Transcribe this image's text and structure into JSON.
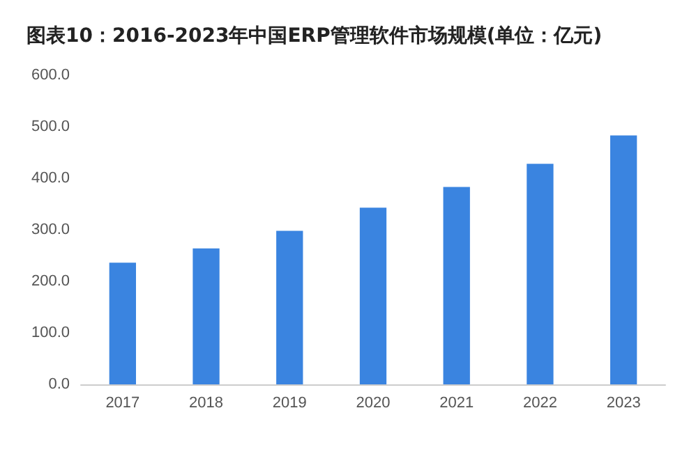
{
  "chart_data": {
    "type": "bar",
    "title": "图表10：2016-2023年中国ERP管理软件市场规模(单位：亿元)",
    "categories": [
      "2017",
      "2018",
      "2019",
      "2020",
      "2021",
      "2022",
      "2023"
    ],
    "values": [
      236,
      264,
      298,
      343,
      383,
      428,
      483
    ],
    "color": "#3a84e0",
    "ylim": [
      0,
      600
    ],
    "yticks": [
      {
        "value": 0,
        "label": "0.0"
      },
      {
        "value": 100,
        "label": "100.0"
      },
      {
        "value": 200,
        "label": "200.0"
      },
      {
        "value": 300,
        "label": "300.0"
      },
      {
        "value": 400,
        "label": "400.0"
      },
      {
        "value": 500,
        "label": "500.0"
      },
      {
        "value": 600,
        "label": "600.0"
      }
    ],
    "grid": false
  }
}
